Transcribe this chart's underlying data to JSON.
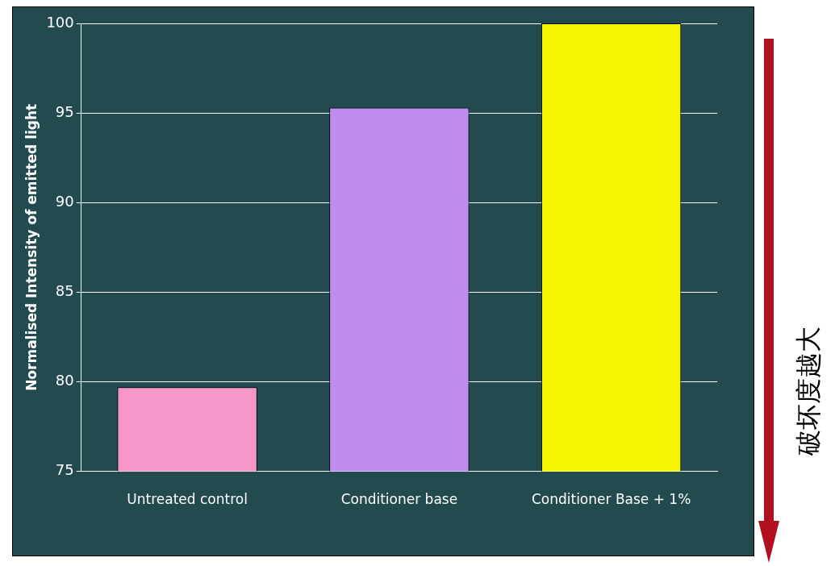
{
  "chart_data": {
    "type": "bar",
    "ylabel": "Normalised Intensity of emitted light",
    "categories": [
      "Untreated control",
      "Conditioner base",
      "Conditioner Base + 1%"
    ],
    "values": [
      79.7,
      95.3,
      100
    ],
    "colors": [
      "#f596c8",
      "#c08cf0",
      "#f5f500"
    ],
    "ylim": [
      75,
      100
    ],
    "yticks": [
      75,
      80,
      85,
      90,
      95,
      100
    ],
    "grid": "y",
    "annotations": [
      "破坏度越大"
    ]
  }
}
